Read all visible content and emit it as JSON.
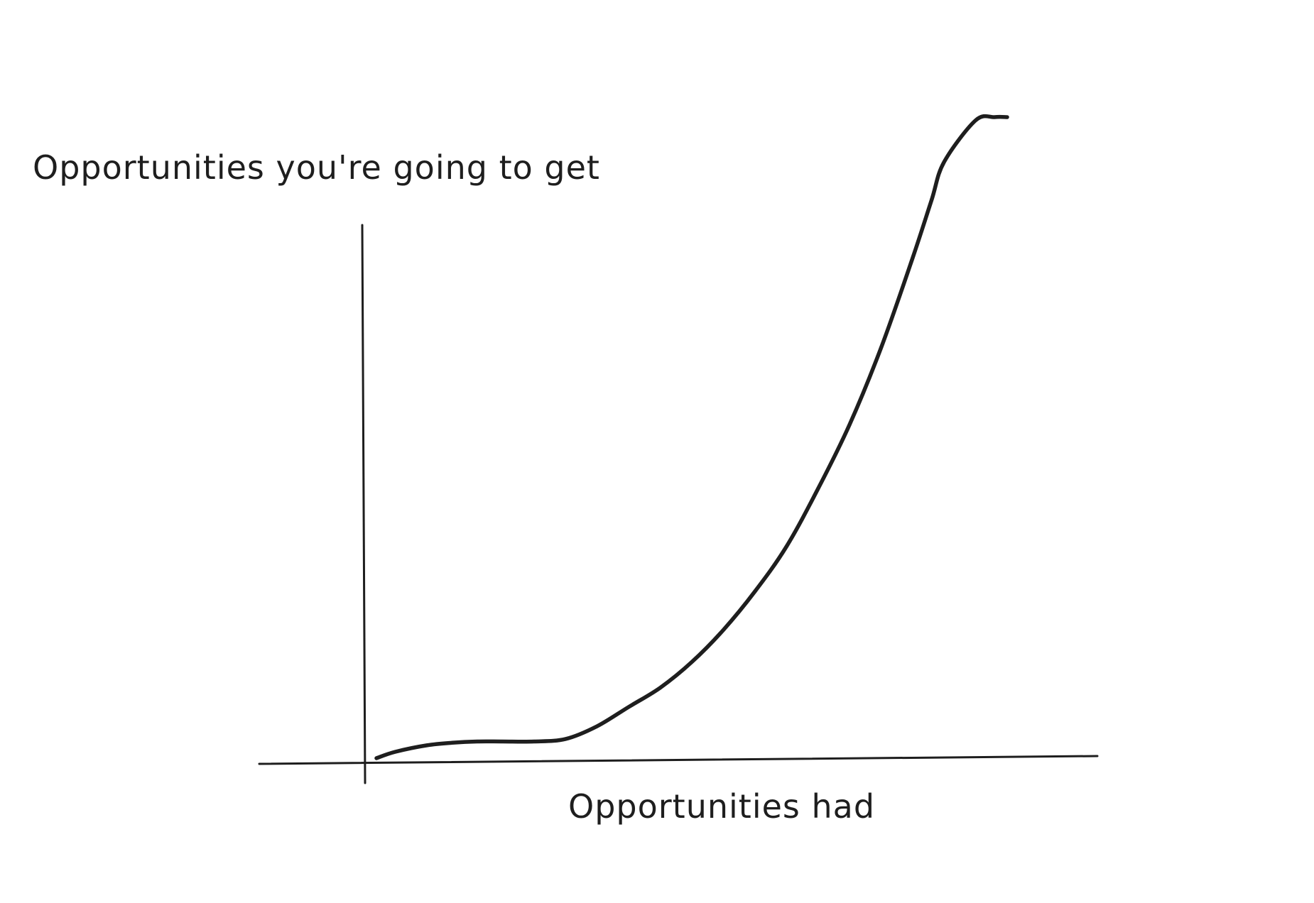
{
  "chart_data": {
    "type": "line",
    "title": "",
    "xlabel": "Opportunities had",
    "ylabel": "Opportunities you're going to get",
    "grid": false,
    "legend": "none",
    "xlim": [
      0,
      100
    ],
    "ylim": [
      0,
      100
    ],
    "series": [
      {
        "x": [
          0,
          3,
          8,
          12,
          16,
          20,
          25,
          30,
          35,
          40,
          45,
          50,
          55,
          60,
          65,
          70,
          75,
          80,
          85,
          88,
          90,
          95,
          98,
          100
        ],
        "y": [
          0,
          1,
          2,
          2.4,
          2.6,
          2.6,
          2.6,
          3,
          5,
          8,
          11,
          15,
          20,
          26,
          33,
          42,
          52,
          64,
          78,
          87,
          93,
          99.5,
          100,
          100
        ],
        "color": "#1e1e1e"
      }
    ]
  },
  "colors": {
    "ink": "#1e1e1e",
    "background": "#ffffff"
  }
}
